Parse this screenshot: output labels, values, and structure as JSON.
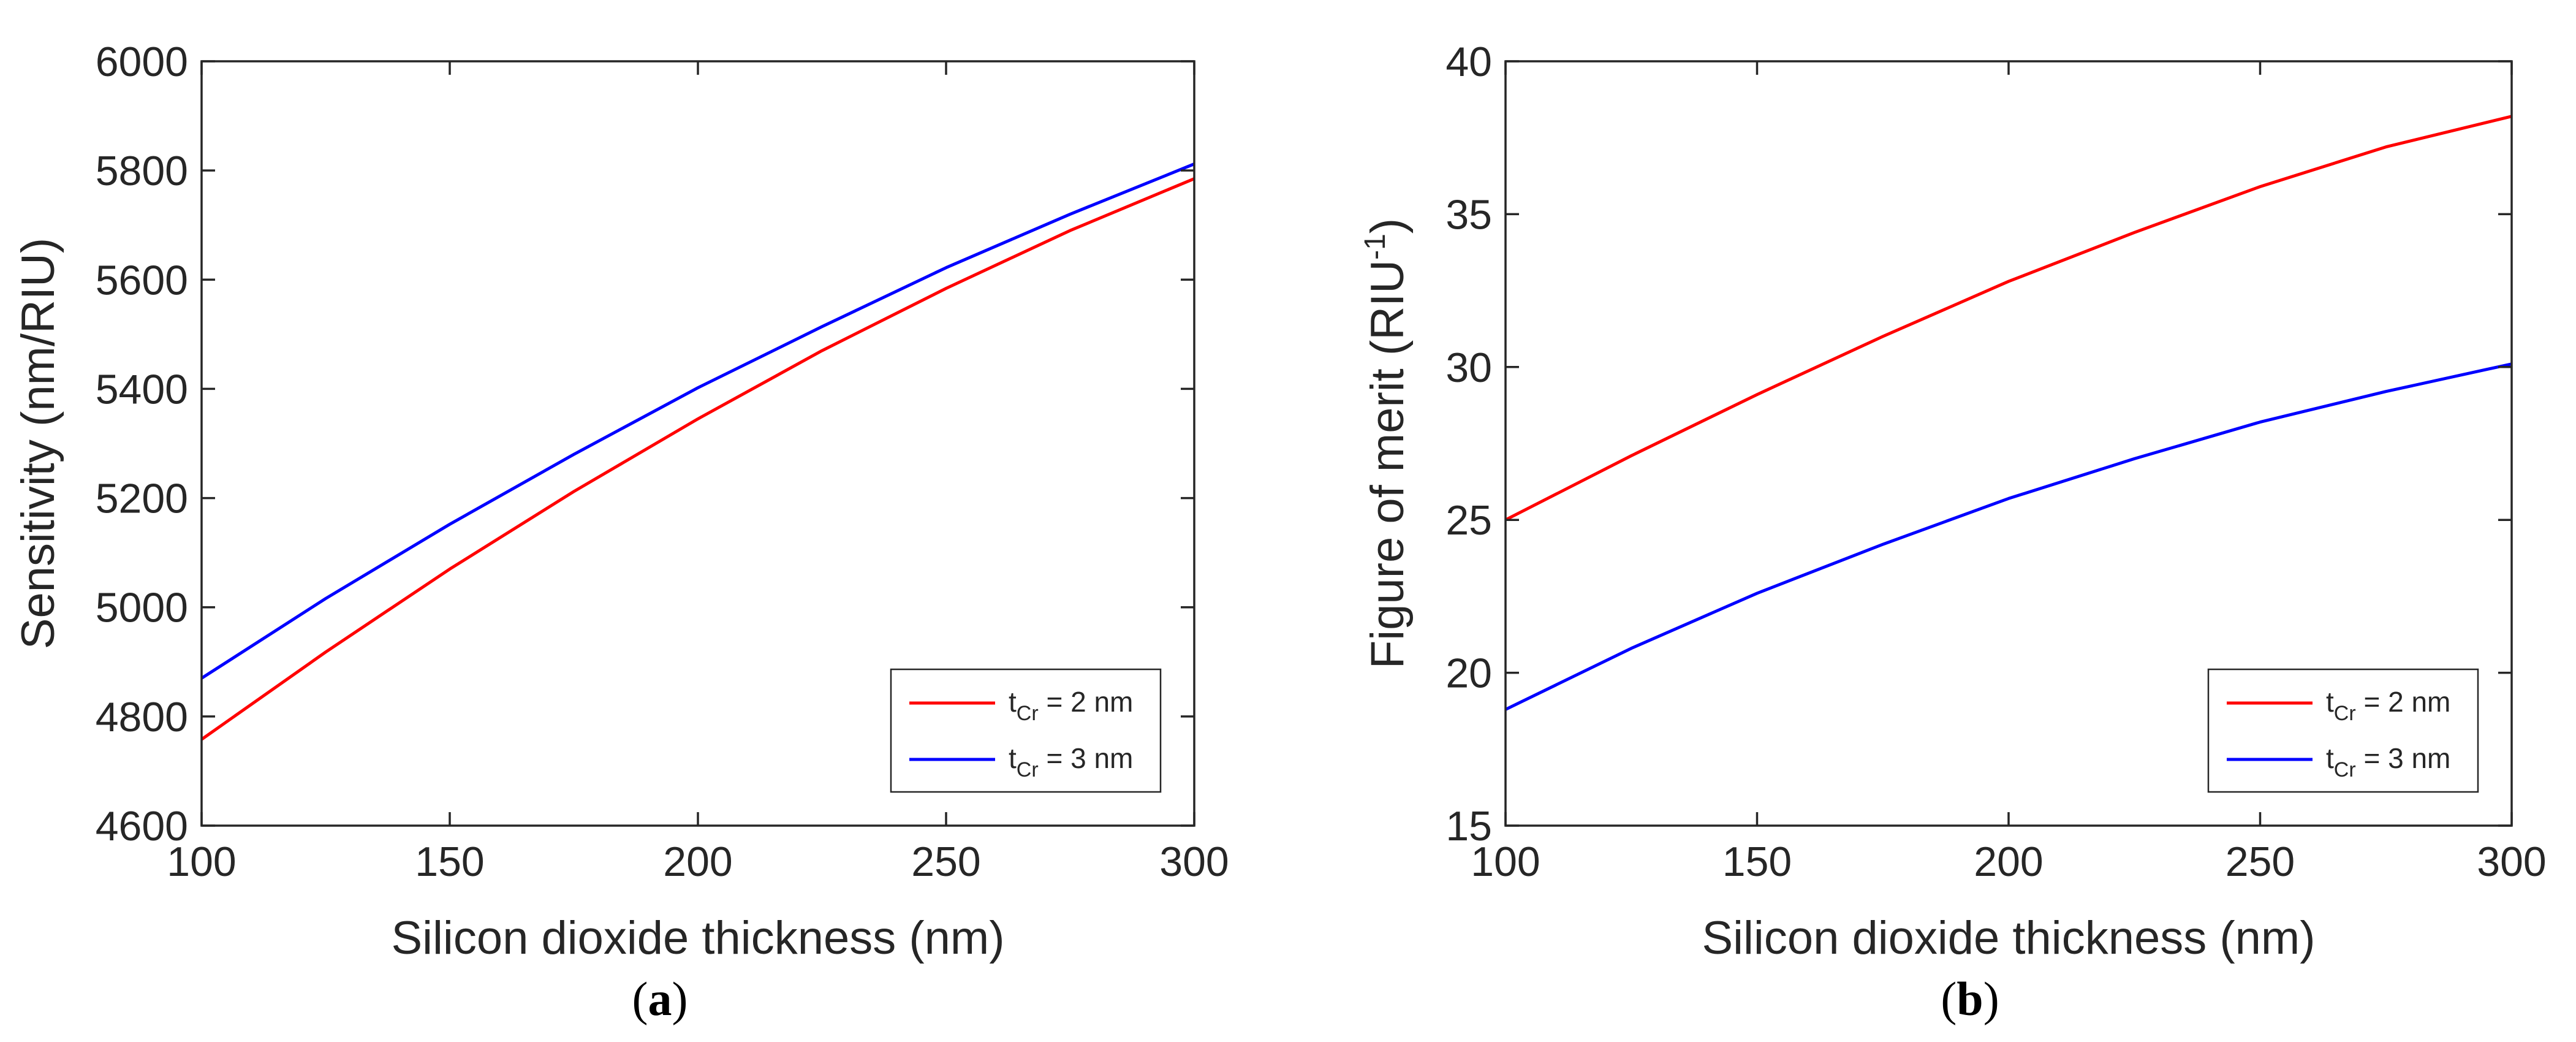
{
  "chart_data": [
    {
      "type": "line",
      "panel_label": "a",
      "xlabel": "Silicon dioxide thickness (nm)",
      "ylabel": "Sensitivity (nm/RIU)",
      "xlim": [
        100,
        300
      ],
      "ylim": [
        4600,
        6000
      ],
      "xticks": [
        100,
        150,
        200,
        250,
        300
      ],
      "yticks": [
        4600,
        4800,
        5000,
        5200,
        5400,
        5600,
        5800,
        6000
      ],
      "grid": false,
      "legend_position": "bottom-right",
      "series": [
        {
          "name": "t_Cr = 2 nm",
          "label_main": "t",
          "label_sub": "Cr",
          "label_rest": " = 2 nm",
          "color": "#ff0000",
          "x": [
            100,
            125,
            150,
            175,
            200,
            225,
            250,
            275,
            300
          ],
          "y": [
            4758,
            4918,
            5070,
            5212,
            5345,
            5470,
            5584,
            5690,
            5785
          ]
        },
        {
          "name": "t_Cr = 3 nm",
          "label_main": "t",
          "label_sub": "Cr",
          "label_rest": " = 3 nm",
          "color": "#0000ff",
          "x": [
            100,
            125,
            150,
            175,
            200,
            225,
            250,
            275,
            300
          ],
          "y": [
            4870,
            5016,
            5152,
            5280,
            5402,
            5514,
            5622,
            5720,
            5812
          ]
        }
      ]
    },
    {
      "type": "line",
      "panel_label": "b",
      "xlabel": "Silicon dioxide thickness (nm)",
      "ylabel_main": "Figure of merit (RIU",
      "ylabel_sup": "-1",
      "ylabel_close": ")",
      "xlim": [
        100,
        300
      ],
      "ylim": [
        15,
        40
      ],
      "xticks": [
        100,
        150,
        200,
        250,
        300
      ],
      "yticks": [
        15,
        20,
        25,
        30,
        35,
        40
      ],
      "grid": false,
      "legend_position": "bottom-right",
      "series": [
        {
          "name": "t_Cr = 2 nm",
          "label_main": "t",
          "label_sub": "Cr",
          "label_rest": " = 2 nm",
          "color": "#ff0000",
          "x": [
            100,
            125,
            150,
            175,
            200,
            225,
            250,
            275,
            300
          ],
          "y": [
            25.0,
            27.1,
            29.1,
            31.0,
            32.8,
            34.4,
            35.9,
            37.2,
            38.2
          ]
        },
        {
          "name": "t_Cr = 3 nm",
          "label_main": "t",
          "label_sub": "Cr",
          "label_rest": " = 3 nm",
          "color": "#0000ff",
          "x": [
            100,
            125,
            150,
            175,
            200,
            225,
            250,
            275,
            300
          ],
          "y": [
            18.8,
            20.8,
            22.6,
            24.2,
            25.7,
            27.0,
            28.2,
            29.2,
            30.1
          ]
        }
      ]
    }
  ]
}
